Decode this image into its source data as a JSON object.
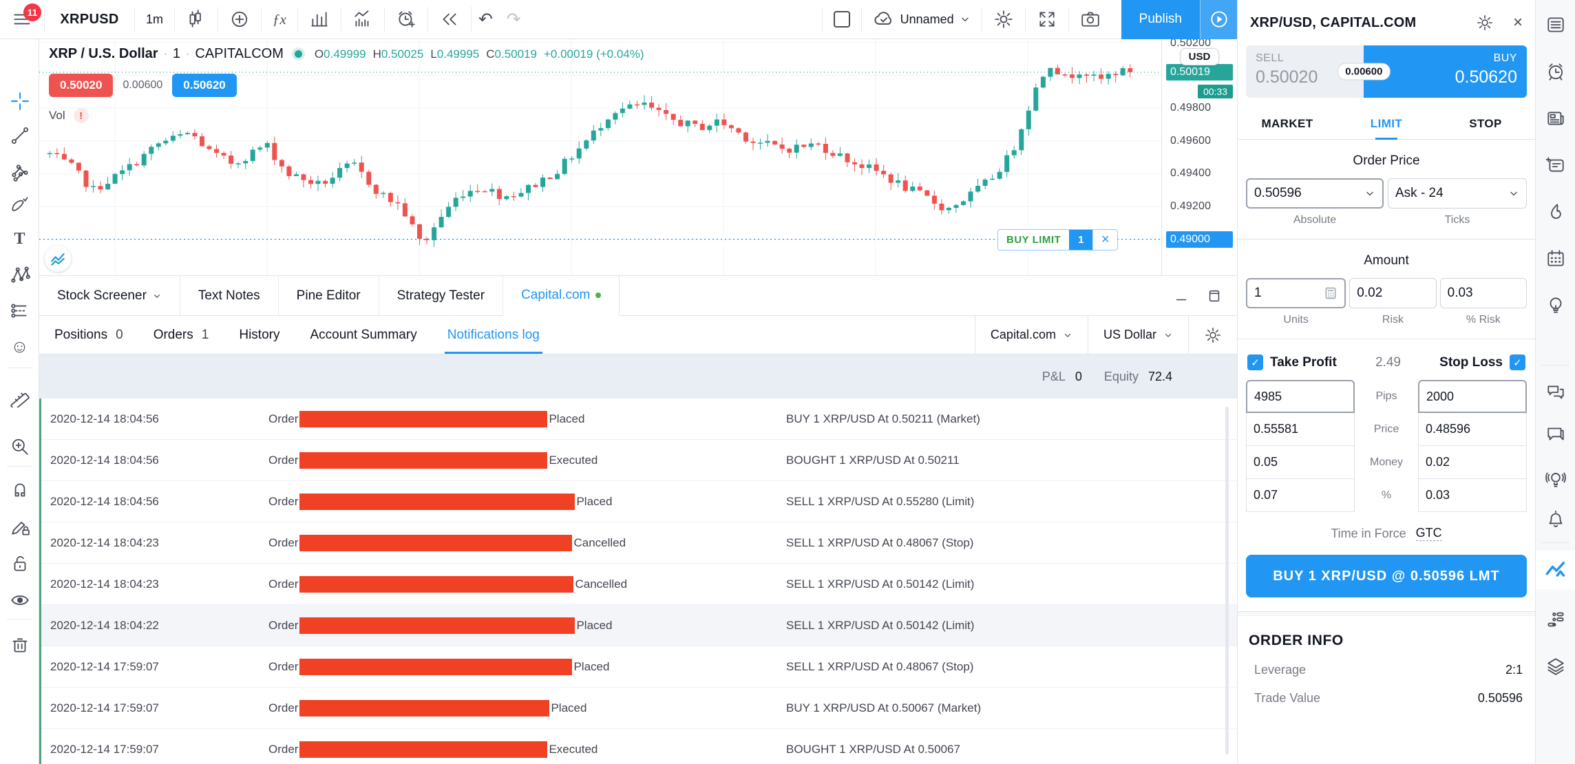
{
  "icons": {
    "undo": "↶",
    "redo": "↷",
    "close": "×",
    "check": "✓",
    "smiley": "☺",
    "text_tool": "T",
    "fx": "ƒx",
    "minimize": "–"
  },
  "colors": {
    "accent_blue": "#2196f3",
    "up_teal": "#26a69a",
    "down_red": "#ef5350",
    "badge_red": "#f23645",
    "buy_limit_green": "#2e9e3d",
    "redaction_red": "#f04124"
  },
  "header": {
    "menu_badge": "11",
    "symbol": "XRPUSD",
    "interval": "1m",
    "layout_name": "Unnamed",
    "publish_label": "Publish"
  },
  "chart": {
    "legend": {
      "title": "XRP / U.S. Dollar",
      "sep": "·",
      "interval": "1",
      "exchange": "CAPITALCOM",
      "o_label": "O",
      "o": "0.49999",
      "h_label": "H",
      "h": "0.50025",
      "l_label": "L",
      "l": "0.49995",
      "c_label": "C",
      "c": "0.50019",
      "change": "+0.00019 (+0.04%)",
      "sell_price": "0.50020",
      "spread": "0.00600",
      "buy_price": "0.50620",
      "vol_label": "Vol",
      "vol_alert": "!"
    },
    "price_scale": {
      "currency": "USD",
      "top_tick": "0.50200",
      "last_price": "0.50019",
      "countdown": "00:33",
      "ticks": [
        "0.49800",
        "0.49600",
        "0.49400",
        "0.49200"
      ],
      "order_price": "0.49000"
    },
    "order_badge": {
      "label": "BUY LIMIT",
      "qty": "1"
    },
    "chart_data": {
      "type": "candlestick",
      "symbol": "XRP/USD",
      "interval": "1 minute",
      "price_range": [
        0.4878,
        0.5022
      ],
      "grid_prices": [
        0.502,
        0.5,
        0.498,
        0.496,
        0.494,
        0.492,
        0.49
      ],
      "last_close": 0.50019,
      "order_line_price": 0.49,
      "num_candles": 150,
      "anchors": [
        [
          0,
          0.4952
        ],
        [
          0.02,
          0.4944
        ],
        [
          0.04,
          0.493
        ],
        [
          0.07,
          0.4942
        ],
        [
          0.1,
          0.4958
        ],
        [
          0.13,
          0.4965
        ],
        [
          0.15,
          0.4952
        ],
        [
          0.17,
          0.4946
        ],
        [
          0.2,
          0.4958
        ],
        [
          0.22,
          0.494
        ],
        [
          0.25,
          0.4933
        ],
        [
          0.28,
          0.4946
        ],
        [
          0.305,
          0.4928
        ],
        [
          0.325,
          0.492
        ],
        [
          0.345,
          0.4896
        ],
        [
          0.36,
          0.4912
        ],
        [
          0.38,
          0.4928
        ],
        [
          0.4,
          0.4932
        ],
        [
          0.42,
          0.4926
        ],
        [
          0.44,
          0.493
        ],
        [
          0.47,
          0.4942
        ],
        [
          0.5,
          0.4962
        ],
        [
          0.52,
          0.4978
        ],
        [
          0.55,
          0.4982
        ],
        [
          0.57,
          0.4974
        ],
        [
          0.6,
          0.4968
        ],
        [
          0.62,
          0.4972
        ],
        [
          0.65,
          0.496
        ],
        [
          0.68,
          0.4955
        ],
        [
          0.71,
          0.4958
        ],
        [
          0.74,
          0.4948
        ],
        [
          0.77,
          0.494
        ],
        [
          0.79,
          0.4932
        ],
        [
          0.81,
          0.4926
        ],
        [
          0.83,
          0.4918
        ],
        [
          0.85,
          0.4926
        ],
        [
          0.87,
          0.4936
        ],
        [
          0.89,
          0.4952
        ],
        [
          0.91,
          0.4988
        ],
        [
          0.925,
          0.5008
        ],
        [
          0.94,
          0.4998
        ],
        [
          0.955,
          0.5004
        ],
        [
          0.97,
          0.4996
        ],
        [
          0.985,
          0.5002
        ],
        [
          1,
          0.50019
        ]
      ],
      "colors": {
        "up": "#26a69a",
        "down": "#ef5350"
      }
    }
  },
  "bottom_panel": {
    "tabs": [
      {
        "label": "Stock Screener"
      },
      {
        "label": "Text Notes"
      },
      {
        "label": "Pine Editor"
      },
      {
        "label": "Strategy Tester"
      },
      {
        "label": "Capital.com"
      }
    ],
    "subtabs": [
      {
        "label": "Positions",
        "count": "0"
      },
      {
        "label": "Orders",
        "count": "1"
      },
      {
        "label": "History",
        "count": ""
      },
      {
        "label": "Account Summary",
        "count": ""
      },
      {
        "label": "Notifications log",
        "count": ""
      }
    ],
    "broker_select": "Capital.com",
    "currency_select": "US Dollar",
    "account_bar": {
      "pnl_label": "P&L",
      "pnl_value": "0",
      "equity_label": "Equity",
      "equity_value": "72.4"
    },
    "rows": [
      {
        "time": "2020-12-14 18:04:56",
        "prefix": "Order",
        "status": "Placed",
        "message": "BUY 1 XRP/USD At 0.50211 (Market)",
        "redact_w": 360,
        "alt": false
      },
      {
        "time": "2020-12-14 18:04:56",
        "prefix": "Order",
        "status": "Executed",
        "message": "BOUGHT 1 XRP/USD At 0.50211",
        "redact_w": 360,
        "alt": false
      },
      {
        "time": "2020-12-14 18:04:56",
        "prefix": "Order",
        "status": "Placed",
        "message": "SELL 1 XRP/USD At 0.55280 (Limit)",
        "redact_w": 400,
        "alt": false
      },
      {
        "time": "2020-12-14 18:04:23",
        "prefix": "Order",
        "status": "Cancelled",
        "message": "SELL 1 XRP/USD At 0.48067 (Stop)",
        "redact_w": 396,
        "alt": false
      },
      {
        "time": "2020-12-14 18:04:23",
        "prefix": "Order",
        "status": "Cancelled",
        "message": "SELL 1 XRP/USD At 0.50142 (Limit)",
        "redact_w": 398,
        "alt": false
      },
      {
        "time": "2020-12-14 18:04:22",
        "prefix": "Order",
        "status": "Placed",
        "message": "SELL 1 XRP/USD At 0.50142 (Limit)",
        "redact_w": 400,
        "alt": true
      },
      {
        "time": "2020-12-14 17:59:07",
        "prefix": "Order",
        "status": "Placed",
        "message": "SELL 1 XRP/USD At 0.48067 (Stop)",
        "redact_w": 396,
        "alt": false
      },
      {
        "time": "2020-12-14 17:59:07",
        "prefix": "Order",
        "status": "Placed",
        "message": "BUY 1 XRP/USD At 0.50067 (Market)",
        "redact_w": 363,
        "alt": false
      },
      {
        "time": "2020-12-14 17:59:07",
        "prefix": "Order",
        "status": "Executed",
        "message": "BOUGHT 1 XRP/USD At 0.50067",
        "redact_w": 360,
        "alt": false
      }
    ]
  },
  "trade_panel": {
    "title": "XRP/USD, CAPITAL.COM",
    "sell_label": "SELL",
    "sell_price": "0.50020",
    "spread": "0.00600",
    "buy_label": "BUY",
    "buy_price": "0.50620",
    "order_tabs": [
      "MARKET",
      "LIMIT",
      "STOP"
    ],
    "active_order_tab": "LIMIT",
    "order_price": {
      "heading": "Order Price",
      "absolute_value": "0.50596",
      "absolute_label": "Absolute",
      "ticks_value": "Ask - 24",
      "ticks_label": "Ticks"
    },
    "amount": {
      "heading": "Amount",
      "units": "1",
      "units_label": "Units",
      "risk": "0.02",
      "risk_label": "Risk",
      "pct_risk": "0.03",
      "pct_risk_label": "% Risk"
    },
    "brackets": {
      "tp_label": "Take Profit",
      "mid_value": "2.49",
      "sl_label": "Stop Loss",
      "row_labels": [
        "Pips",
        "Price",
        "Money",
        "%"
      ],
      "tp": [
        "4985",
        "0.55581",
        "0.05",
        "0.07"
      ],
      "sl": [
        "2000",
        "0.48596",
        "0.02",
        "0.03"
      ]
    },
    "tif": {
      "label": "Time in Force",
      "value": "GTC"
    },
    "submit_label": "BUY 1 XRP/USD @ 0.50596 LMT",
    "order_info": {
      "heading": "ORDER INFO",
      "rows": [
        {
          "label": "Leverage",
          "value": "2:1"
        },
        {
          "label": "Trade Value",
          "value": "0.50596"
        }
      ]
    }
  }
}
